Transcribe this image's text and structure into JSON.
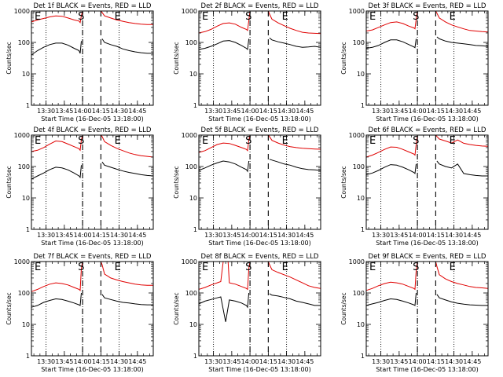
{
  "panels": [
    {
      "title": "Det 1f BLACK = Events, RED = LLD",
      "xlabel": "Start Time (16-Dec-05 13:18:00)",
      "ylabel": "Counts/sec",
      "markers": [
        "E",
        "S",
        "E"
      ]
    },
    {
      "title": "Det 2f BLACK = Events, RED = LLD",
      "xlabel": "Start Time (16-Dec-05 13:18:00)",
      "ylabel": "Counts/sec",
      "markers": [
        "E",
        "S",
        "E"
      ]
    },
    {
      "title": "Det 3f BLACK = Events, RED = LLD",
      "xlabel": "Start Time (16-Dec-05 13:18:00)",
      "ylabel": "Counts/sec",
      "markers": [
        "E",
        "S",
        "E"
      ]
    },
    {
      "title": "Det 4f BLACK = Events, RED = LLD",
      "xlabel": "Start Time (16-Dec-05 13:18:00)",
      "ylabel": "Counts/sec",
      "markers": [
        "E",
        "S",
        "E"
      ]
    },
    {
      "title": "Det 5f BLACK = Events, RED = LLD",
      "xlabel": "Start Time (16-Dec-05 13:18:00)",
      "ylabel": "Counts/sec",
      "markers": [
        "E",
        "S",
        "E"
      ]
    },
    {
      "title": "Det 6f BLACK = Events, RED = LLD",
      "xlabel": "Start Time (16-Dec-05 13:18:00)",
      "ylabel": "Counts/sec",
      "markers": [
        "E",
        "S",
        "E"
      ]
    },
    {
      "title": "Det 7f BLACK = Events, RED = LLD",
      "xlabel": "Start Time (16-Dec-05 13:18:00)",
      "ylabel": "Counts/sec",
      "markers": [
        "E",
        "S",
        "E"
      ]
    },
    {
      "title": "Det 8f BLACK = Events, RED = LLD",
      "xlabel": "Start Time (16-Dec-05 13:18:00)",
      "ylabel": "Counts/sec",
      "markers": [
        "E",
        "S",
        "E"
      ]
    },
    {
      "title": "Det 9f BLACK = Events, RED = LLD",
      "xlabel": "Start Time (16-Dec-05 13:18:00)",
      "ylabel": "Counts/sec",
      "markers": [
        "E",
        "S",
        "E"
      ]
    }
  ],
  "colors": {
    "events": "#000000",
    "lld": "#e00000",
    "frame": "#000000"
  },
  "chart_data": {
    "type": "line",
    "layout": "3x3 grid of panels",
    "x_unit": "minutes from 13:18:00",
    "xlim": [
      0,
      100
    ],
    "x_tick_labels": [
      "13:30",
      "13:45",
      "14:00",
      "14:15",
      "14:30",
      "14:45"
    ],
    "x_tick_values": [
      12,
      27,
      42,
      57,
      72,
      87
    ],
    "y_scale": "log",
    "ylim": [
      1,
      1000
    ],
    "y_tick_labels": [
      "1",
      "10",
      "100",
      "1000"
    ],
    "y_tick_values": [
      1,
      10,
      100,
      1000
    ],
    "dotted_lines_x": [
      12,
      42,
      72
    ],
    "dashed_lines_x": [
      42,
      57
    ],
    "series_meaning": {
      "black": "Events",
      "red": "LLD"
    },
    "panels": [
      {
        "events": {
          "x": [
            0,
            5,
            10,
            15,
            20,
            25,
            30,
            35,
            39,
            40,
            41,
            57,
            58,
            60,
            65,
            70,
            75,
            80,
            85,
            90,
            95,
            100
          ],
          "y": [
            40,
            55,
            70,
            85,
            95,
            95,
            82,
            65,
            55,
            45,
            110,
            null,
            130,
            100,
            85,
            75,
            62,
            55,
            50,
            47,
            45,
            45
          ]
        },
        "lld": {
          "x": [
            0,
            5,
            10,
            15,
            20,
            25,
            30,
            35,
            39,
            40,
            41,
            42,
            57,
            58,
            60,
            65,
            70,
            75,
            80,
            85,
            90,
            95,
            100
          ],
          "y": [
            450,
            520,
            580,
            650,
            700,
            680,
            600,
            520,
            480,
            430,
            700,
            1000,
            1000,
            900,
            700,
            600,
            520,
            470,
            430,
            400,
            380,
            370,
            370
          ]
        }
      },
      {
        "events": {
          "x": [
            0,
            5,
            10,
            15,
            20,
            25,
            30,
            35,
            39,
            40,
            41,
            57,
            58,
            60,
            65,
            70,
            75,
            80,
            85,
            90,
            95,
            100
          ],
          "y": [
            60,
            65,
            75,
            90,
            110,
            115,
            100,
            80,
            65,
            60,
            130,
            null,
            140,
            120,
            105,
            95,
            85,
            75,
            70,
            72,
            75,
            70
          ]
        },
        "lld": {
          "x": [
            0,
            5,
            10,
            15,
            20,
            25,
            30,
            35,
            39,
            40,
            41,
            42,
            57,
            58,
            60,
            65,
            70,
            75,
            80,
            85,
            90,
            95,
            100
          ],
          "y": [
            200,
            220,
            260,
            330,
            400,
            420,
            380,
            300,
            260,
            240,
            500,
            1000,
            1000,
            800,
            550,
            420,
            340,
            280,
            240,
            210,
            200,
            195,
            190
          ]
        }
      },
      {
        "events": {
          "x": [
            0,
            5,
            10,
            15,
            20,
            25,
            30,
            35,
            39,
            40,
            41,
            57,
            58,
            60,
            65,
            70,
            75,
            80,
            85,
            90,
            95,
            100
          ],
          "y": [
            65,
            70,
            80,
            100,
            120,
            120,
            105,
            85,
            72,
            68,
            130,
            null,
            150,
            130,
            110,
            100,
            95,
            90,
            85,
            80,
            78,
            75
          ]
        },
        "lld": {
          "x": [
            0,
            5,
            10,
            15,
            20,
            25,
            30,
            35,
            39,
            40,
            41,
            42,
            57,
            58,
            60,
            65,
            70,
            75,
            80,
            85,
            90,
            95,
            100
          ],
          "y": [
            230,
            250,
            300,
            360,
            430,
            450,
            400,
            330,
            290,
            270,
            550,
            1000,
            1000,
            850,
            600,
            450,
            360,
            310,
            270,
            240,
            230,
            220,
            215
          ]
        }
      },
      {
        "events": {
          "x": [
            0,
            5,
            10,
            15,
            20,
            25,
            30,
            35,
            39,
            40,
            41,
            57,
            58,
            60,
            65,
            70,
            75,
            80,
            85,
            90,
            95,
            100
          ],
          "y": [
            40,
            50,
            62,
            80,
            95,
            90,
            78,
            62,
            50,
            45,
            110,
            null,
            140,
            110,
            95,
            82,
            72,
            65,
            60,
            55,
            52,
            50
          ]
        },
        "lld": {
          "x": [
            0,
            5,
            10,
            15,
            20,
            25,
            30,
            35,
            39,
            40,
            41,
            42,
            57,
            58,
            60,
            65,
            70,
            75,
            80,
            85,
            90,
            95,
            100
          ],
          "y": [
            300,
            330,
            400,
            520,
            650,
            620,
            520,
            430,
            370,
            330,
            700,
            1000,
            1000,
            900,
            620,
            470,
            380,
            320,
            270,
            240,
            220,
            210,
            200
          ]
        }
      },
      {
        "events": {
          "x": [
            0,
            5,
            10,
            15,
            20,
            25,
            30,
            35,
            39,
            40,
            41,
            57,
            58,
            60,
            65,
            70,
            75,
            80,
            85,
            90,
            95,
            100
          ],
          "y": [
            75,
            90,
            110,
            130,
            150,
            140,
            120,
            95,
            80,
            70,
            150,
            null,
            170,
            160,
            140,
            120,
            110,
            95,
            85,
            80,
            78,
            75
          ]
        },
        "lld": {
          "x": [
            0,
            5,
            10,
            15,
            20,
            25,
            30,
            35,
            39,
            40,
            41,
            42,
            57,
            58,
            60,
            65,
            70,
            75,
            80,
            85,
            90,
            95,
            100
          ],
          "y": [
            280,
            320,
            400,
            500,
            560,
            540,
            470,
            400,
            350,
            320,
            700,
            1000,
            1000,
            900,
            680,
            560,
            480,
            430,
            400,
            380,
            370,
            360,
            355
          ]
        }
      },
      {
        "events": {
          "x": [
            0,
            5,
            10,
            15,
            20,
            25,
            30,
            35,
            39,
            40,
            41,
            57,
            58,
            60,
            65,
            70,
            75,
            80,
            85,
            90,
            95,
            100
          ],
          "y": [
            55,
            62,
            75,
            95,
            115,
            110,
            95,
            78,
            65,
            60,
            120,
            null,
            150,
            120,
            100,
            90,
            120,
            60,
            55,
            52,
            50,
            50
          ]
        },
        "lld": {
          "x": [
            0,
            5,
            10,
            15,
            20,
            25,
            30,
            35,
            39,
            40,
            41,
            42,
            57,
            58,
            60,
            65,
            70,
            75,
            80,
            85,
            90,
            95,
            100
          ],
          "y": [
            200,
            230,
            280,
            350,
            420,
            410,
            350,
            290,
            250,
            230,
            500,
            1000,
            1000,
            900,
            750,
            650,
            560,
            700,
            550,
            500,
            470,
            450,
            440
          ]
        }
      },
      {
        "events": {
          "x": [
            0,
            5,
            10,
            15,
            20,
            25,
            30,
            35,
            39,
            40,
            41,
            57,
            58,
            60,
            65,
            70,
            75,
            80,
            85,
            90,
            95,
            100
          ],
          "y": [
            35,
            40,
            50,
            58,
            65,
            62,
            55,
            48,
            42,
            40,
            100,
            null,
            90,
            70,
            62,
            55,
            50,
            48,
            45,
            43,
            42,
            42
          ]
        },
        "lld": {
          "x": [
            0,
            5,
            10,
            15,
            20,
            25,
            30,
            35,
            39,
            40,
            41,
            42,
            57,
            58,
            60,
            65,
            70,
            75,
            80,
            85,
            90,
            95,
            100
          ],
          "y": [
            110,
            130,
            160,
            190,
            210,
            200,
            180,
            150,
            130,
            120,
            600,
            1000,
            1000,
            800,
            400,
            300,
            260,
            230,
            210,
            190,
            180,
            175,
            175
          ]
        }
      },
      {
        "events": {
          "x": [
            0,
            5,
            10,
            15,
            18,
            22,
            25,
            30,
            35,
            39,
            40,
            41,
            57,
            58,
            60,
            65,
            70,
            75,
            80,
            85,
            90,
            95,
            100
          ],
          "y": [
            45,
            55,
            62,
            70,
            75,
            12,
            60,
            55,
            48,
            40,
            35,
            100,
            null,
            95,
            85,
            80,
            72,
            65,
            55,
            50,
            45,
            40,
            40
          ]
        },
        "lld": {
          "x": [
            0,
            5,
            10,
            15,
            18,
            20,
            24,
            25,
            30,
            35,
            39,
            40,
            41,
            42,
            57,
            58,
            60,
            65,
            70,
            75,
            80,
            85,
            90,
            95,
            100
          ],
          "y": [
            130,
            150,
            180,
            210,
            230,
            1000,
            1000,
            210,
            190,
            160,
            140,
            130,
            600,
            1000,
            1000,
            800,
            550,
            450,
            380,
            320,
            260,
            210,
            170,
            150,
            140
          ]
        }
      },
      {
        "events": {
          "x": [
            0,
            5,
            10,
            15,
            20,
            25,
            30,
            35,
            39,
            40,
            41,
            57,
            58,
            60,
            65,
            70,
            75,
            80,
            85,
            90,
            95,
            100
          ],
          "y": [
            40,
            45,
            50,
            58,
            65,
            62,
            55,
            48,
            42,
            40,
            100,
            null,
            90,
            70,
            60,
            52,
            47,
            44,
            42,
            41,
            40,
            40
          ]
        },
        "lld": {
          "x": [
            0,
            5,
            10,
            15,
            20,
            25,
            30,
            35,
            39,
            40,
            41,
            42,
            57,
            58,
            60,
            65,
            70,
            75,
            80,
            85,
            90,
            95,
            100
          ],
          "y": [
            120,
            140,
            170,
            200,
            220,
            210,
            190,
            160,
            140,
            130,
            500,
            1000,
            1000,
            700,
            380,
            280,
            230,
            200,
            180,
            160,
            150,
            145,
            140
          ]
        }
      }
    ]
  }
}
